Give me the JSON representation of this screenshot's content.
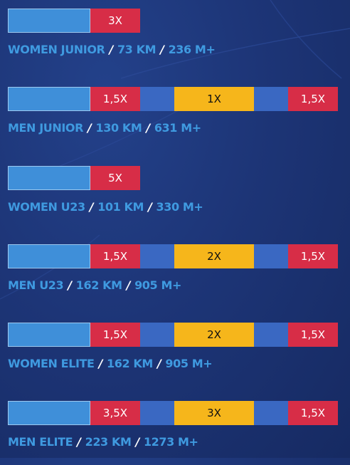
{
  "races": [
    {
      "category": "WOMEN JUNIOR",
      "distance": "73 KM",
      "elevation": "236 M+",
      "laps": [
        {
          "label": "",
          "kind": "base"
        },
        {
          "label": "3X",
          "kind": "red"
        }
      ]
    },
    {
      "category": "MEN JUNIOR",
      "distance": "130 KM",
      "elevation": "631 M+",
      "laps": [
        {
          "label": "",
          "kind": "base"
        },
        {
          "label": "1,5X",
          "kind": "red"
        },
        {
          "label": "",
          "kind": "blue"
        },
        {
          "label": "1X",
          "kind": "yellow"
        },
        {
          "label": "",
          "kind": "blue"
        },
        {
          "label": "1,5X",
          "kind": "red"
        }
      ]
    },
    {
      "category": "WOMEN U23",
      "distance": "101 KM",
      "elevation": "330 M+",
      "laps": [
        {
          "label": "",
          "kind": "base"
        },
        {
          "label": "5X",
          "kind": "red"
        }
      ]
    },
    {
      "category": "MEN U23",
      "distance": "162 KM",
      "elevation": "905 M+",
      "laps": [
        {
          "label": "",
          "kind": "base"
        },
        {
          "label": "1,5X",
          "kind": "red"
        },
        {
          "label": "",
          "kind": "blue"
        },
        {
          "label": "2X",
          "kind": "yellow"
        },
        {
          "label": "",
          "kind": "blue"
        },
        {
          "label": "1,5X",
          "kind": "red"
        }
      ]
    },
    {
      "category": "WOMEN ELITE",
      "distance": "162 KM",
      "elevation": "905 M+",
      "laps": [
        {
          "label": "",
          "kind": "base"
        },
        {
          "label": "1,5X",
          "kind": "red"
        },
        {
          "label": "",
          "kind": "blue"
        },
        {
          "label": "2X",
          "kind": "yellow"
        },
        {
          "label": "",
          "kind": "blue"
        },
        {
          "label": "1,5X",
          "kind": "red"
        }
      ]
    },
    {
      "category": "MEN ELITE",
      "distance": "223 KM",
      "elevation": "1273 M+",
      "laps": [
        {
          "label": "",
          "kind": "base"
        },
        {
          "label": "3,5X",
          "kind": "red"
        },
        {
          "label": "",
          "kind": "blue"
        },
        {
          "label": "3X",
          "kind": "yellow"
        },
        {
          "label": "",
          "kind": "blue"
        },
        {
          "label": "1,5X",
          "kind": "red"
        }
      ]
    }
  ],
  "separator": "/",
  "colors": {
    "background": "#1d3577",
    "base_segment": "#3f8fd9",
    "red_segment": "#d72d47",
    "blue_segment": "#3a68c2",
    "yellow_segment": "#f6b61b",
    "caption_text": "#3f9ae0",
    "separator": "#ffffff"
  }
}
